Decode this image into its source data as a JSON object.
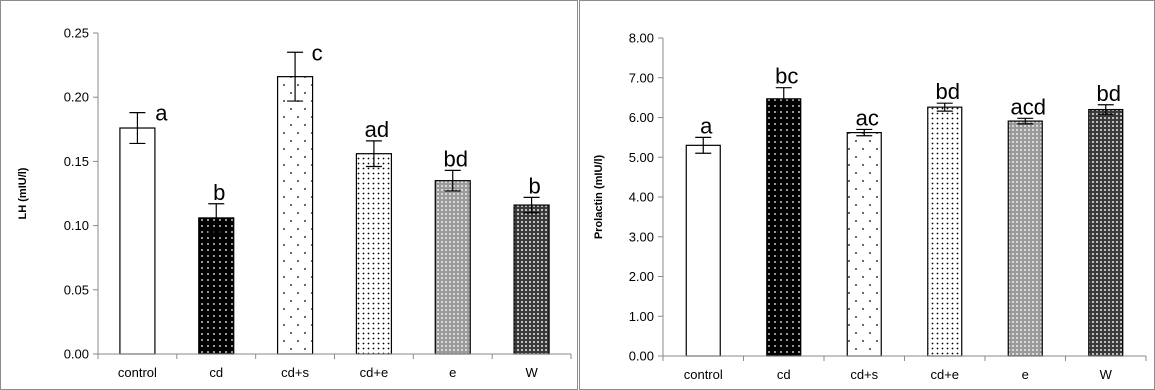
{
  "chart_data": [
    {
      "type": "bar",
      "title": "",
      "xlabel": "",
      "ylabel": "LH (mIU/l)",
      "ylim": [
        0,
        0.25
      ],
      "yticks": [
        "0.00",
        "0.05",
        "0.10",
        "0.15",
        "0.20",
        "0.25"
      ],
      "grid": false,
      "categories": [
        "control",
        "cd",
        "cd+s",
        "cd+e",
        "e",
        "W"
      ],
      "values": [
        0.176,
        0.106,
        0.216,
        0.156,
        0.135,
        0.116
      ],
      "errors": [
        0.012,
        0.011,
        0.019,
        0.01,
        0.008,
        0.006
      ],
      "sig_labels": [
        "a",
        "b",
        "c",
        "ad",
        "bd",
        "b"
      ],
      "patterns": [
        "white",
        "black-dots",
        "sparse-dots",
        "dense-dots",
        "gray-mesh",
        "dark-mesh"
      ]
    },
    {
      "type": "bar",
      "title": "",
      "xlabel": "",
      "ylabel": "Prolactin (mIU/l)",
      "ylim": [
        0,
        8
      ],
      "yticks": [
        "0.00",
        "1.00",
        "2.00",
        "3.00",
        "4.00",
        "5.00",
        "6.00",
        "7.00",
        "8.00"
      ],
      "grid": false,
      "categories": [
        "control",
        "cd",
        "cd+s",
        "cd+e",
        "e",
        "W"
      ],
      "values": [
        5.3,
        6.47,
        5.62,
        6.26,
        5.91,
        6.2
      ],
      "errors": [
        0.2,
        0.28,
        0.08,
        0.1,
        0.07,
        0.12
      ],
      "sig_labels": [
        "a",
        "bc",
        "ac",
        "bd",
        "acd",
        "bd"
      ],
      "patterns": [
        "white",
        "black-dots",
        "sparse-dots",
        "dense-dots",
        "gray-mesh",
        "dark-mesh"
      ]
    }
  ]
}
